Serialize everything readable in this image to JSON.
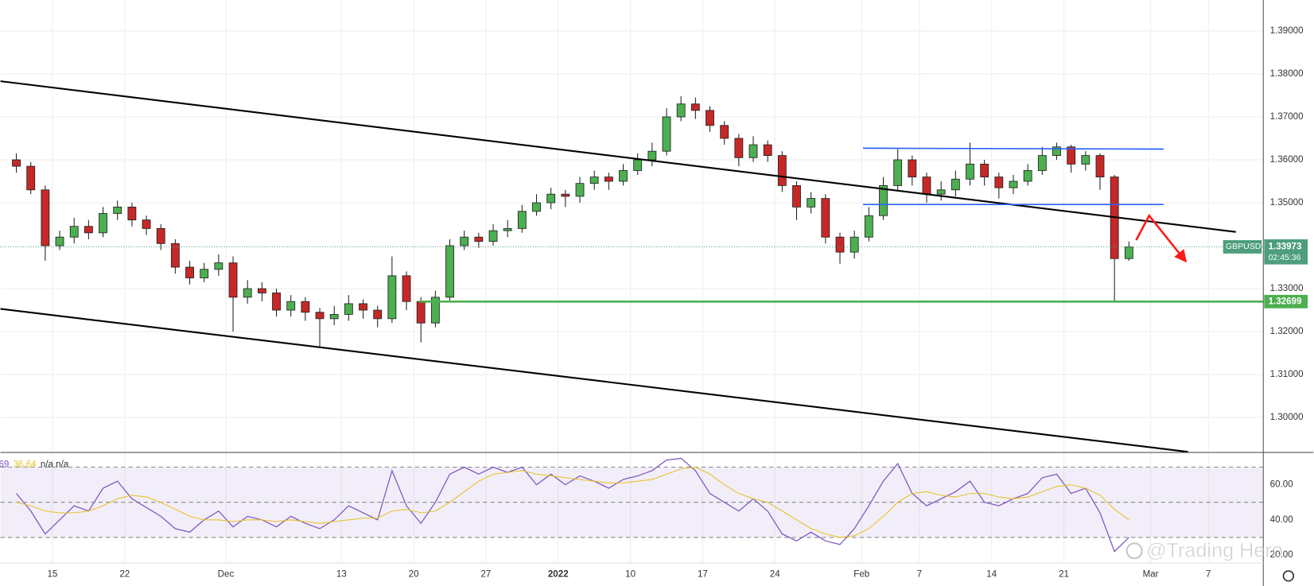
{
  "chart_data": [
    {
      "type": "candlestick",
      "symbol": "GBPUSD",
      "last_price": 1.33973,
      "countdown": "02:45:36",
      "up_color": "#4caf50",
      "down_color": "#c62828",
      "xlim": [
        -3.6,
        83.8
      ],
      "ylim": [
        1.29195,
        1.39721
      ],
      "yticks": [
        {
          "value": 1.39,
          "label": "1.39000"
        },
        {
          "value": 1.38,
          "label": "1.38000"
        },
        {
          "value": 1.37,
          "label": "1.37000"
        },
        {
          "value": 1.36,
          "label": "1.36000"
        },
        {
          "value": 1.35,
          "label": "1.35000"
        },
        {
          "value": 1.33,
          "label": "1.33000"
        },
        {
          "value": 1.32,
          "label": "1.32000"
        },
        {
          "value": 1.31,
          "label": "1.31000"
        },
        {
          "value": 1.3,
          "label": "1.30000"
        }
      ],
      "grid": true,
      "x": [
        -3,
        -2,
        -1,
        0,
        1,
        2,
        3,
        4,
        5,
        6,
        7,
        8,
        9,
        10,
        11,
        12,
        13,
        14,
        15,
        16,
        17,
        18,
        19,
        20,
        21,
        22,
        23,
        24,
        25,
        26,
        27,
        28,
        29,
        30,
        31,
        32,
        33,
        34,
        35,
        36,
        37,
        38,
        39,
        40,
        41,
        42,
        43,
        44,
        45,
        46,
        47,
        48,
        49,
        50,
        51,
        52,
        53,
        54,
        55,
        56,
        57,
        58,
        59,
        60,
        61,
        62,
        63,
        64,
        65,
        66,
        67,
        68,
        69,
        70,
        71,
        72,
        73,
        74
      ],
      "open": [
        1.36,
        1.3585,
        1.353,
        1.34,
        1.342,
        1.3445,
        1.343,
        1.3475,
        1.349,
        1.346,
        1.344,
        1.3405,
        1.335,
        1.3325,
        1.3345,
        1.336,
        1.328,
        1.33,
        1.329,
        1.325,
        1.327,
        1.3245,
        1.323,
        1.324,
        1.3265,
        1.325,
        1.323,
        1.333,
        1.327,
        1.322,
        1.328,
        1.34,
        1.342,
        1.341,
        1.3435,
        1.344,
        1.348,
        1.35,
        1.352,
        1.3515,
        1.3545,
        1.356,
        1.355,
        1.3575,
        1.36,
        1.362,
        1.37,
        1.373,
        1.3715,
        1.368,
        1.365,
        1.3605,
        1.3635,
        1.361,
        1.354,
        1.349,
        1.351,
        1.342,
        1.3385,
        1.342,
        1.347,
        1.354,
        1.36,
        1.356,
        1.352,
        1.353,
        1.3555,
        1.359,
        1.356,
        1.3535,
        1.355,
        1.3575,
        1.361,
        1.363,
        1.359,
        1.361,
        1.356,
        1.337
      ],
      "high": [
        1.3615,
        1.3595,
        1.354,
        1.3435,
        1.3465,
        1.346,
        1.349,
        1.3505,
        1.35,
        1.347,
        1.345,
        1.3415,
        1.3365,
        1.336,
        1.338,
        1.3375,
        1.332,
        1.3315,
        1.33,
        1.3285,
        1.328,
        1.3255,
        1.326,
        1.3285,
        1.3275,
        1.326,
        1.3375,
        1.334,
        1.328,
        1.3295,
        1.3415,
        1.3435,
        1.343,
        1.345,
        1.346,
        1.3495,
        1.352,
        1.3535,
        1.353,
        1.356,
        1.3575,
        1.357,
        1.359,
        1.3615,
        1.364,
        1.372,
        1.3748,
        1.3745,
        1.3725,
        1.369,
        1.366,
        1.3655,
        1.3645,
        1.362,
        1.355,
        1.3525,
        1.352,
        1.343,
        1.3435,
        1.349,
        1.356,
        1.3625,
        1.361,
        1.357,
        1.355,
        1.3575,
        1.364,
        1.36,
        1.357,
        1.3565,
        1.359,
        1.363,
        1.364,
        1.3635,
        1.362,
        1.3615,
        1.3565,
        1.341
      ],
      "low": [
        1.357,
        1.352,
        1.3365,
        1.339,
        1.3405,
        1.3415,
        1.342,
        1.346,
        1.3445,
        1.3425,
        1.339,
        1.3335,
        1.331,
        1.3315,
        1.333,
        1.32,
        1.3265,
        1.327,
        1.3235,
        1.3235,
        1.3225,
        1.3165,
        1.3215,
        1.3225,
        1.323,
        1.321,
        1.322,
        1.325,
        1.3175,
        1.321,
        1.327,
        1.339,
        1.3395,
        1.34,
        1.342,
        1.343,
        1.347,
        1.3485,
        1.349,
        1.35,
        1.353,
        1.353,
        1.354,
        1.3565,
        1.3585,
        1.361,
        1.369,
        1.3695,
        1.3665,
        1.3635,
        1.3585,
        1.3595,
        1.3595,
        1.3525,
        1.346,
        1.3475,
        1.3405,
        1.3358,
        1.337,
        1.341,
        1.346,
        1.353,
        1.354,
        1.35,
        1.3505,
        1.3515,
        1.354,
        1.354,
        1.351,
        1.352,
        1.354,
        1.3565,
        1.36,
        1.357,
        1.3575,
        1.353,
        1.327,
        1.3365
      ],
      "close": [
        1.3585,
        1.353,
        1.34,
        1.342,
        1.3445,
        1.343,
        1.3475,
        1.349,
        1.346,
        1.344,
        1.3405,
        1.335,
        1.3325,
        1.3345,
        1.336,
        1.328,
        1.33,
        1.329,
        1.325,
        1.327,
        1.3245,
        1.323,
        1.324,
        1.3265,
        1.325,
        1.323,
        1.333,
        1.327,
        1.322,
        1.328,
        1.34,
        1.342,
        1.341,
        1.3435,
        1.344,
        1.348,
        1.35,
        1.352,
        1.3515,
        1.3545,
        1.356,
        1.355,
        1.3575,
        1.36,
        1.362,
        1.37,
        1.373,
        1.3715,
        1.368,
        1.365,
        1.3605,
        1.3635,
        1.361,
        1.354,
        1.349,
        1.351,
        1.342,
        1.3385,
        1.342,
        1.347,
        1.354,
        1.36,
        1.356,
        1.352,
        1.353,
        1.3555,
        1.359,
        1.356,
        1.3535,
        1.355,
        1.3575,
        1.361,
        1.363,
        1.359,
        1.361,
        1.356,
        1.337,
        1.3397
      ],
      "trendlines": [
        {
          "color": "#000000",
          "x": [
            -3.6,
            81.9
          ],
          "y": [
            1.3783,
            1.3432
          ]
        },
        {
          "color": "#000000",
          "x": [
            -3.6,
            78.6
          ],
          "y": [
            1.3253,
            1.292
          ]
        },
        {
          "color": "#2962ff",
          "x": [
            56.1,
            76.9
          ],
          "y": [
            1.3627,
            1.3625
          ]
        },
        {
          "color": "#2962ff",
          "x": [
            56.1,
            76.9
          ],
          "y": [
            1.3496,
            1.3496
          ]
        }
      ],
      "support": {
        "value": 1.32699,
        "start": 25.4,
        "color": "#4caf50"
      },
      "arrow": {
        "color": "#ff1a1a",
        "x": [
          75.0,
          75.9,
          78.4
        ],
        "y": [
          1.3413,
          1.347,
          1.3365
        ]
      }
    },
    {
      "type": "line",
      "legend_values": [
        "69",
        "36.64",
        "n/a n/a"
      ],
      "xlim": [
        -3.6,
        83.8
      ],
      "ylim": [
        15.7,
        78.1
      ],
      "xticks": [
        {
          "value": 0,
          "label": "15"
        },
        {
          "value": 5,
          "label": "22"
        },
        {
          "value": 12,
          "label": "Dec"
        },
        {
          "value": 20,
          "label": "13"
        },
        {
          "value": 25,
          "label": "20"
        },
        {
          "value": 30,
          "label": "27"
        },
        {
          "value": 35,
          "label": "2022"
        },
        {
          "value": 40,
          "label": "10"
        },
        {
          "value": 45,
          "label": "17"
        },
        {
          "value": 50,
          "label": "24"
        },
        {
          "value": 56,
          "label": "Feb"
        },
        {
          "value": 60,
          "label": "7"
        },
        {
          "value": 65,
          "label": "14"
        },
        {
          "value": 70,
          "label": "21"
        },
        {
          "value": 76,
          "label": "Mar"
        },
        {
          "value": 80,
          "label": "7"
        }
      ],
      "yticks": [
        {
          "value": 60,
          "label": "60.00"
        },
        {
          "value": 40,
          "label": "40.00"
        },
        {
          "value": 20,
          "label": "20.00"
        }
      ],
      "levels": [
        30,
        50,
        70
      ],
      "band_color": "#7e57c2",
      "x": [
        -3,
        -2,
        -1,
        0,
        1,
        2,
        3,
        4,
        5,
        6,
        7,
        8,
        9,
        10,
        11,
        12,
        13,
        14,
        15,
        16,
        17,
        18,
        19,
        20,
        21,
        22,
        23,
        24,
        25,
        26,
        27,
        28,
        29,
        30,
        31,
        32,
        33,
        34,
        35,
        36,
        37,
        38,
        39,
        40,
        41,
        42,
        43,
        44,
        45,
        46,
        47,
        48,
        49,
        50,
        51,
        52,
        53,
        54,
        55,
        56,
        57,
        58,
        59,
        60,
        61,
        62,
        63,
        64,
        65,
        66,
        67,
        68,
        69,
        70,
        71,
        72,
        73,
        74
      ],
      "series": [
        {
          "color": "#7e57c2",
          "values": [
            55,
            45,
            32,
            40,
            48,
            45,
            58,
            62,
            52,
            47,
            42,
            35,
            33,
            40,
            45,
            36,
            42,
            40,
            36,
            42,
            38,
            35,
            40,
            48,
            44,
            40,
            68,
            48,
            38,
            50,
            66,
            70,
            66,
            70,
            67,
            70,
            60,
            66,
            60,
            65,
            62,
            58,
            63,
            65,
            68,
            74,
            75,
            68,
            55,
            50,
            45,
            52,
            45,
            32,
            28,
            33,
            28,
            26,
            35,
            48,
            62,
            72,
            55,
            48,
            52,
            56,
            62,
            50,
            48,
            52,
            55,
            64,
            66,
            55,
            58,
            44,
            22,
            30
          ]
        },
        {
          "color": "#e6c229",
          "values": [
            50,
            48,
            45,
            44,
            44,
            45,
            48,
            52,
            54,
            53,
            50,
            46,
            42,
            40,
            40,
            39,
            40,
            40,
            39,
            40,
            39,
            38,
            39,
            40,
            41,
            41,
            45,
            46,
            44,
            45,
            50,
            56,
            62,
            66,
            67,
            68,
            66,
            65,
            64,
            63,
            62,
            61,
            61,
            62,
            63,
            66,
            69,
            70,
            66,
            60,
            55,
            52,
            50,
            45,
            40,
            35,
            32,
            30,
            31,
            35,
            42,
            50,
            55,
            56,
            54,
            53,
            55,
            55,
            53,
            52,
            53,
            56,
            59,
            60,
            58,
            54,
            46,
            40
          ]
        }
      ]
    }
  ]
}
